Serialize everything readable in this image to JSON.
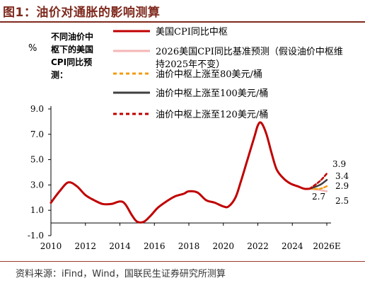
{
  "page": {
    "title": "图1：油价对通胀的影响测算",
    "source": "资料来源：iFind，Wind，国联民生证券研究所测算"
  },
  "chart_data": {
    "type": "line",
    "ylabel_unit": "%",
    "ylabel_note": [
      "不同油价中",
      "枢下的美国",
      "CPI同比预",
      "测："
    ],
    "ylim": [
      -1.0,
      9.0
    ],
    "y_ticks": [
      -1.0,
      1.0,
      3.0,
      5.0,
      7.0,
      9.0
    ],
    "y_tick_labels": [
      "-1.0",
      "1.0",
      "3.0",
      "5.0",
      "7.0",
      "9.0"
    ],
    "xlim": [
      2010,
      2026
    ],
    "x_ticks": [
      2010,
      2012,
      2014,
      2016,
      2018,
      2020,
      2022,
      2024,
      2026
    ],
    "x_tick_labels": [
      "2010",
      "2012",
      "2014",
      "2016",
      "2018",
      "2020",
      "2022",
      "2024",
      "2026E"
    ],
    "grid": false,
    "legend_position": "top",
    "series": [
      {
        "name": "美国CPI同比中枢",
        "color": "#c00000",
        "style": "solid",
        "points": [
          [
            2010.0,
            1.6
          ],
          [
            2010.5,
            2.5
          ],
          [
            2011.0,
            3.2
          ],
          [
            2011.5,
            2.9
          ],
          [
            2012.0,
            2.2
          ],
          [
            2012.5,
            1.8
          ],
          [
            2013.0,
            1.5
          ],
          [
            2013.5,
            1.5
          ],
          [
            2014.0,
            1.7
          ],
          [
            2014.3,
            1.5
          ],
          [
            2014.7,
            0.6
          ],
          [
            2015.0,
            0.1
          ],
          [
            2015.4,
            0.1
          ],
          [
            2015.8,
            0.6
          ],
          [
            2016.2,
            1.2
          ],
          [
            2016.7,
            1.7
          ],
          [
            2017.2,
            2.1
          ],
          [
            2017.7,
            2.3
          ],
          [
            2018.0,
            2.5
          ],
          [
            2018.5,
            2.4
          ],
          [
            2019.0,
            1.8
          ],
          [
            2019.5,
            1.6
          ],
          [
            2020.0,
            1.3
          ],
          [
            2020.3,
            1.3
          ],
          [
            2020.7,
            2.0
          ],
          [
            2021.0,
            3.2
          ],
          [
            2021.4,
            5.0
          ],
          [
            2021.8,
            6.8
          ],
          [
            2022.0,
            7.7
          ],
          [
            2022.2,
            7.9
          ],
          [
            2022.5,
            7.0
          ],
          [
            2022.8,
            5.5
          ],
          [
            2023.1,
            4.2
          ],
          [
            2023.5,
            3.5
          ],
          [
            2023.9,
            3.1
          ],
          [
            2024.3,
            2.9
          ],
          [
            2024.7,
            2.7
          ],
          [
            2025.0,
            2.7
          ]
        ]
      },
      {
        "name": "2026美国CPI同比基准预测（假设油价中枢维持2025年不变）",
        "color": "#f4b6b6",
        "style": "solid",
        "points": [
          [
            2025.0,
            2.7
          ],
          [
            2025.6,
            2.6
          ],
          [
            2026.0,
            2.5
          ]
        ],
        "end_label": "2.5"
      },
      {
        "name": "油价中枢上涨至80美元/桶",
        "color": "#f39c12",
        "style": "dashed",
        "points": [
          [
            2025.0,
            2.7
          ],
          [
            2025.6,
            2.7
          ],
          [
            2026.0,
            2.9
          ]
        ],
        "end_label": "2.9"
      },
      {
        "name": "油价中枢上涨至100美元/桶",
        "color": "#404040",
        "style": "solid",
        "points": [
          [
            2025.0,
            2.7
          ],
          [
            2025.6,
            3.0
          ],
          [
            2026.0,
            3.4
          ]
        ],
        "end_label": "3.4"
      },
      {
        "name": "油价中枢上涨至120美元/桶",
        "color": "#c00000",
        "style": "dashed",
        "points": [
          [
            2025.0,
            2.7
          ],
          [
            2025.6,
            3.3
          ],
          [
            2026.0,
            3.9
          ]
        ],
        "end_label": "3.9"
      }
    ],
    "annotations": [
      {
        "text": "2.7",
        "x": 2025.0,
        "y": 2.7
      }
    ]
  }
}
